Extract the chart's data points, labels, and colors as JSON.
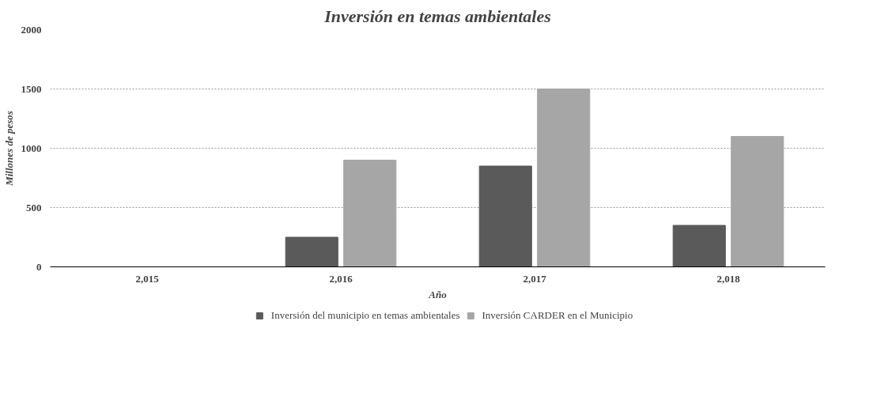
{
  "chart_data": {
    "type": "bar",
    "title": "Inversión en temas ambientales",
    "xlabel": "Año",
    "ylabel": "Millones de pesos",
    "categories": [
      "2,015",
      "2,016",
      "2,017",
      "2,018"
    ],
    "series": [
      {
        "name": "Inversión del municipio en temas ambientales",
        "color": "#5a5a5a",
        "values": [
          0,
          250,
          850,
          350
        ]
      },
      {
        "name": "Inversión CARDER en el Municipio",
        "color": "#a6a6a6",
        "values": [
          0,
          900,
          1500,
          1100
        ]
      }
    ],
    "ylim": [
      0,
      2000
    ],
    "yticks": [
      0,
      500,
      1000,
      1500,
      2000
    ],
    "grid": "y",
    "legend": "bottom"
  }
}
